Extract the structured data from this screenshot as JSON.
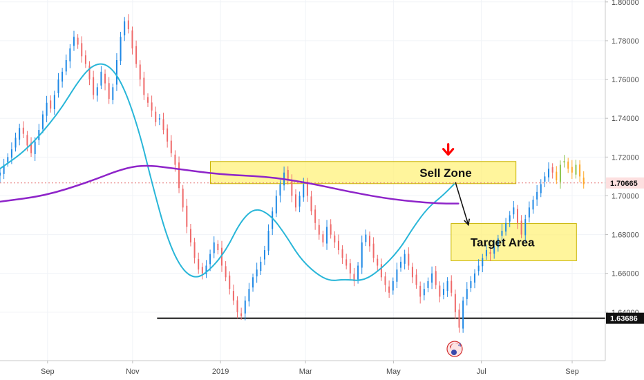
{
  "chart_data": {
    "type": "candlestick",
    "price_axis": {
      "range": [
        1.615,
        1.801
      ],
      "ticks": [
        "1.80000",
        "1.78000",
        "1.76000",
        "1.74000",
        "1.72000",
        "1.70000",
        "1.68000",
        "1.66000",
        "1.64000"
      ]
    },
    "time_axis": {
      "range": [
        "2018-08-01",
        "2019-09-25"
      ],
      "ticks": [
        {
          "label": "Sep",
          "date": "2018-09-03"
        },
        {
          "label": "Nov",
          "date": "2018-11-01"
        },
        {
          "label": "2019",
          "date": "2019-01-01"
        },
        {
          "label": "Mar",
          "date": "2019-03-01"
        },
        {
          "label": "May",
          "date": "2019-05-01"
        },
        {
          "label": "Jul",
          "date": "2019-07-01"
        },
        {
          "label": "Sep",
          "date": "2019-09-02"
        }
      ]
    },
    "candles_start": "2018-08-01",
    "candles_close": [
      1.712,
      1.716,
      1.72,
      1.724,
      1.73,
      1.735,
      1.732,
      1.726,
      1.722,
      1.728,
      1.734,
      1.742,
      1.748,
      1.745,
      1.752,
      1.76,
      1.764,
      1.77,
      1.776,
      1.782,
      1.778,
      1.772,
      1.768,
      1.76,
      1.752,
      1.756,
      1.764,
      1.758,
      1.75,
      1.756,
      1.77,
      1.782,
      1.79,
      1.786,
      1.776,
      1.768,
      1.76,
      1.752,
      1.748,
      1.744,
      1.738,
      1.74,
      1.734,
      1.728,
      1.722,
      1.716,
      1.704,
      1.694,
      1.684,
      1.676,
      1.668,
      1.662,
      1.66,
      1.664,
      1.67,
      1.676,
      1.672,
      1.664,
      1.658,
      1.652,
      1.646,
      1.64,
      1.638,
      1.646,
      1.652,
      1.658,
      1.662,
      1.666,
      1.672,
      1.682,
      1.692,
      1.7,
      1.706,
      1.712,
      1.708,
      1.7,
      1.694,
      1.7,
      1.706,
      1.7,
      1.692,
      1.686,
      1.68,
      1.676,
      1.684,
      1.68,
      1.676,
      1.672,
      1.668,
      1.664,
      1.66,
      1.656,
      1.664,
      1.676,
      1.68,
      1.674,
      1.668,
      1.664,
      1.658,
      1.654,
      1.65,
      1.656,
      1.662,
      1.666,
      1.67,
      1.664,
      1.658,
      1.654,
      1.648,
      1.652,
      1.656,
      1.66,
      1.654,
      1.648,
      1.652,
      1.656,
      1.65,
      1.64,
      1.632,
      1.646,
      1.652,
      1.656,
      1.66,
      1.664,
      1.668,
      1.672,
      1.67,
      1.674,
      1.678,
      1.682,
      1.686,
      1.69,
      1.694,
      1.686,
      1.68,
      1.688,
      1.694,
      1.698,
      1.702,
      1.706,
      1.71,
      1.714,
      1.712,
      1.708,
      1.716,
      1.718,
      1.714,
      1.712,
      1.716,
      1.71,
      1.706
    ],
    "moving_averages": [
      {
        "color": "#29b6d8",
        "points": [
          [
            "2018-08-01",
            1.714
          ],
          [
            "2018-08-20",
            1.724
          ],
          [
            "2018-09-10",
            1.742
          ],
          [
            "2018-09-25",
            1.76
          ],
          [
            "2018-10-05",
            1.768
          ],
          [
            "2018-10-15",
            1.768
          ],
          [
            "2018-10-25",
            1.758
          ],
          [
            "2018-11-05",
            1.735
          ],
          [
            "2018-11-15",
            1.705
          ],
          [
            "2018-11-25",
            1.678
          ],
          [
            "2018-12-05",
            1.662
          ],
          [
            "2018-12-15",
            1.657
          ],
          [
            "2018-12-25",
            1.662
          ],
          [
            "2019-01-05",
            1.672
          ],
          [
            "2019-01-15",
            1.687
          ],
          [
            "2019-01-25",
            1.694
          ],
          [
            "2019-02-05",
            1.69
          ],
          [
            "2019-02-15",
            1.68
          ],
          [
            "2019-02-25",
            1.668
          ],
          [
            "2019-03-08",
            1.66
          ],
          [
            "2019-03-18",
            1.656
          ],
          [
            "2019-03-28",
            1.657
          ],
          [
            "2019-04-10",
            1.656
          ],
          [
            "2019-04-22",
            1.662
          ],
          [
            "2019-05-05",
            1.672
          ],
          [
            "2019-05-15",
            1.684
          ],
          [
            "2019-05-25",
            1.694
          ],
          [
            "2019-06-04",
            1.7
          ],
          [
            "2019-06-12",
            1.706
          ]
        ]
      },
      {
        "color": "#8e24c9",
        "points": [
          [
            "2018-08-01",
            1.697
          ],
          [
            "2018-09-01",
            1.7
          ],
          [
            "2018-10-01",
            1.707
          ],
          [
            "2018-10-25",
            1.714
          ],
          [
            "2018-11-10",
            1.716
          ],
          [
            "2018-12-01",
            1.714
          ],
          [
            "2019-01-01",
            1.711
          ],
          [
            "2019-02-01",
            1.71
          ],
          [
            "2019-03-01",
            1.707
          ],
          [
            "2019-04-01",
            1.702
          ],
          [
            "2019-05-01",
            1.698
          ],
          [
            "2019-06-01",
            1.696
          ],
          [
            "2019-06-15",
            1.696
          ]
        ]
      }
    ],
    "zones": [
      {
        "label": "Sell Zone",
        "from": "2018-12-25",
        "to": "2019-07-25",
        "high": 1.7177,
        "low": 1.7063
      },
      {
        "label": "Target Area",
        "from": "2019-06-10",
        "to": "2019-09-05",
        "high": 1.6857,
        "low": 1.6665
      }
    ],
    "projection": {
      "points": [
        [
          "2019-06-13",
          1.707
        ],
        [
          "2019-06-22",
          1.685
        ]
      ]
    },
    "marker": {
      "date": "2019-06-08",
      "price": 1.7227
    },
    "horizontal_lines": [
      {
        "price": 1.63686,
        "label": "1.63686",
        "from": "2018-11-18",
        "color": "#111111"
      },
      {
        "price": 1.70665,
        "label": "1.70665",
        "from": "2018-08-01",
        "color": "#e57373",
        "dashed": true
      }
    ]
  }
}
